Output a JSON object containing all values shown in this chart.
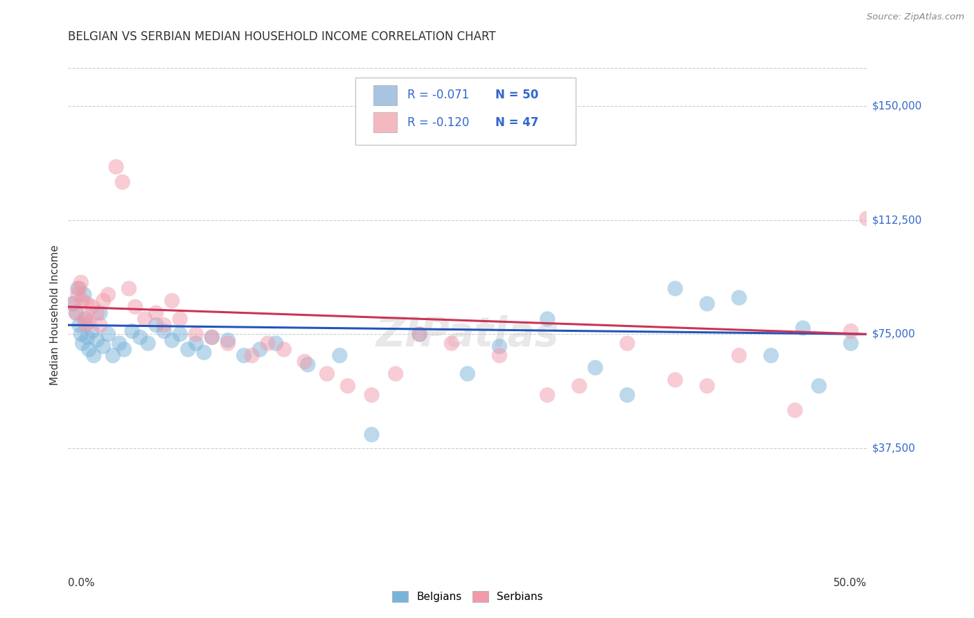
{
  "title": "BELGIAN VS SERBIAN MEDIAN HOUSEHOLD INCOME CORRELATION CHART",
  "source": "Source: ZipAtlas.com",
  "ylabel": "Median Household Income",
  "xlim": [
    0,
    0.5
  ],
  "ylim": [
    0,
    162500
  ],
  "yticks": [
    37500,
    75000,
    112500,
    150000
  ],
  "ytick_labels": [
    "$37,500",
    "$75,000",
    "$112,500",
    "$150,000"
  ],
  "legend_entries": [
    {
      "label_r": "R = -0.071",
      "label_n": "N = 50",
      "color": "#a8c4e0"
    },
    {
      "label_r": "R = -0.120",
      "label_n": "N = 47",
      "color": "#f4b8c1"
    }
  ],
  "legend_bottom": [
    "Belgians",
    "Serbians"
  ],
  "blue_color": "#7ab3d9",
  "pink_color": "#f09aaa",
  "blue_line_color": "#2255bb",
  "pink_line_color": "#cc3355",
  "watermark": "ZIPatlas",
  "blue_intercept": 78000,
  "blue_slope": -6000,
  "pink_intercept": 84000,
  "pink_slope": -18000,
  "belgians_x": [
    0.003,
    0.005,
    0.006,
    0.007,
    0.008,
    0.009,
    0.01,
    0.011,
    0.012,
    0.013,
    0.015,
    0.016,
    0.018,
    0.02,
    0.022,
    0.025,
    0.028,
    0.032,
    0.035,
    0.04,
    0.045,
    0.05,
    0.055,
    0.06,
    0.065,
    0.07,
    0.075,
    0.08,
    0.085,
    0.09,
    0.1,
    0.11,
    0.12,
    0.13,
    0.15,
    0.17,
    0.19,
    0.22,
    0.25,
    0.27,
    0.3,
    0.33,
    0.35,
    0.38,
    0.4,
    0.42,
    0.44,
    0.46,
    0.47,
    0.49
  ],
  "belgians_y": [
    85000,
    82000,
    90000,
    78000,
    75000,
    72000,
    88000,
    80000,
    74000,
    70000,
    76000,
    68000,
    73000,
    82000,
    71000,
    75000,
    68000,
    72000,
    70000,
    76000,
    74000,
    72000,
    78000,
    76000,
    73000,
    75000,
    70000,
    72000,
    69000,
    74000,
    73000,
    68000,
    70000,
    72000,
    65000,
    68000,
    42000,
    75000,
    62000,
    71000,
    80000,
    64000,
    55000,
    90000,
    85000,
    87000,
    68000,
    77000,
    58000,
    72000
  ],
  "serbians_x": [
    0.003,
    0.005,
    0.006,
    0.007,
    0.008,
    0.009,
    0.01,
    0.011,
    0.012,
    0.013,
    0.015,
    0.018,
    0.02,
    0.022,
    0.025,
    0.03,
    0.034,
    0.038,
    0.042,
    0.048,
    0.055,
    0.06,
    0.065,
    0.07,
    0.08,
    0.09,
    0.1,
    0.115,
    0.125,
    0.135,
    0.148,
    0.162,
    0.175,
    0.19,
    0.205,
    0.22,
    0.24,
    0.27,
    0.3,
    0.32,
    0.35,
    0.38,
    0.4,
    0.42,
    0.455,
    0.49,
    0.5
  ],
  "serbians_y": [
    85000,
    82000,
    88000,
    90000,
    92000,
    86000,
    80000,
    78000,
    85000,
    79000,
    84000,
    82000,
    78000,
    86000,
    88000,
    130000,
    125000,
    90000,
    84000,
    80000,
    82000,
    78000,
    86000,
    80000,
    75000,
    74000,
    72000,
    68000,
    72000,
    70000,
    66000,
    62000,
    58000,
    55000,
    62000,
    75000,
    72000,
    68000,
    55000,
    58000,
    72000,
    60000,
    58000,
    68000,
    50000,
    76000,
    113000
  ]
}
